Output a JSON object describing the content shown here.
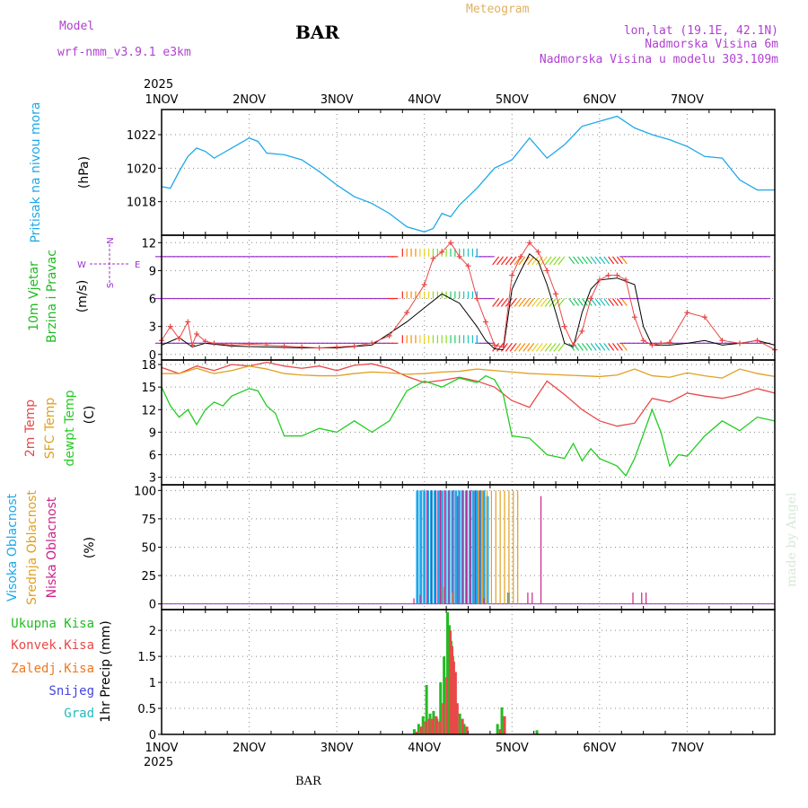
{
  "header": {
    "model_label": "Model",
    "model_name": "wrf-nmm_v3.9.1 e3km",
    "station": "BAR",
    "title": "Meteogram",
    "coords": "lon,lat (19.1E, 42.1N)",
    "elevation": "Nadmorska Visina 6m",
    "model_elevation": "Nadmorska Visina u modelu 303.109m",
    "year_top": "2025",
    "year_bottom": "2025",
    "footer_station": "BAR",
    "watermark": "made by Angel"
  },
  "colors": {
    "pressure": "#1ea8e8",
    "wind_label": "#22bb22",
    "wind_dir": "#9933cc",
    "t2m": "#e84848",
    "sfc": "#e0a020",
    "dew": "#22cc22",
    "cloud_high": "#1ea8e8",
    "cloud_mid": "#e0a020",
    "cloud_low": "#cc2288",
    "prec_total": "#22bb22",
    "prec_conv": "#e84848",
    "prec_frz": "#f07820",
    "prec_snow": "#4444dd",
    "prec_hail": "#22bbbb"
  },
  "chart_data": [
    {
      "type": "line",
      "id": "pressure",
      "ylabel": [
        "Pritisak na nivou mora",
        "(hPa)"
      ],
      "x_categories": [
        "1NOV",
        "2NOV",
        "3NOV",
        "4NOV",
        "5NOV",
        "6NOV",
        "7NOV"
      ],
      "ylim": [
        1016,
        1023.5
      ],
      "yticks": [
        1018,
        1020,
        1022
      ],
      "series": [
        {
          "name": "Pritisak na nivou mora",
          "x": [
            0,
            0.1,
            0.2,
            0.3,
            0.4,
            0.5,
            0.6,
            0.8,
            1.0,
            1.1,
            1.2,
            1.4,
            1.6,
            1.8,
            2.0,
            2.2,
            2.4,
            2.6,
            2.8,
            3.0,
            3.1,
            3.2,
            3.3,
            3.4,
            3.6,
            3.8,
            4.0,
            4.2,
            4.4,
            4.6,
            4.8,
            5.0,
            5.2,
            5.4,
            5.6,
            5.8,
            6.0,
            6.2,
            6.4,
            6.6,
            6.8,
            7.0
          ],
          "y": [
            1018.9,
            1018.8,
            1019.8,
            1020.7,
            1021.2,
            1021.0,
            1020.6,
            1021.2,
            1021.8,
            1021.6,
            1020.9,
            1020.8,
            1020.5,
            1019.8,
            1019.0,
            1018.3,
            1017.9,
            1017.3,
            1016.5,
            1016.2,
            1016.4,
            1017.3,
            1017.1,
            1017.8,
            1018.8,
            1020.0,
            1020.5,
            1021.8,
            1020.6,
            1021.4,
            1022.5,
            1022.8,
            1023.1,
            1022.4,
            1022.0,
            1021.7,
            1021.3,
            1020.7,
            1020.6,
            1019.3,
            1018.7,
            1018.7
          ]
        }
      ]
    },
    {
      "type": "line",
      "id": "wind",
      "ylabel": [
        "10m Vjetar",
        "Brzina i Pravac",
        "(m/s)"
      ],
      "direction_legend": [
        "N",
        "W",
        "E",
        "S"
      ],
      "ylim": [
        -0.6,
        12.8
      ],
      "yticks": [
        0,
        3,
        6,
        9,
        12
      ],
      "series": [
        {
          "name": "gust",
          "x": [
            0,
            0.1,
            0.2,
            0.3,
            0.35,
            0.4,
            0.5,
            0.6,
            0.8,
            1.0,
            1.2,
            1.4,
            1.6,
            1.8,
            2.0,
            2.2,
            2.4,
            2.6,
            2.8,
            3.0,
            3.1,
            3.2,
            3.3,
            3.4,
            3.5,
            3.6,
            3.7,
            3.8,
            3.9,
            4.0,
            4.1,
            4.2,
            4.3,
            4.4,
            4.5,
            4.6,
            4.7,
            4.8,
            4.9,
            5.0,
            5.1,
            5.2,
            5.3,
            5.4,
            5.5,
            5.6,
            5.7,
            5.8,
            6.0,
            6.2,
            6.4,
            6.6,
            6.8,
            7.0
          ],
          "y": [
            1.5,
            3.0,
            1.7,
            3.5,
            1.0,
            2.2,
            1.4,
            1.2,
            1.0,
            1.1,
            1.0,
            0.9,
            0.8,
            0.7,
            0.8,
            0.9,
            1.2,
            2.0,
            4.5,
            7.5,
            10.3,
            11.0,
            12.0,
            10.5,
            9.5,
            6.0,
            3.5,
            1.0,
            0.8,
            8.5,
            10.5,
            12.0,
            11.0,
            9.0,
            6.5,
            3.0,
            1.0,
            2.5,
            6.0,
            8.0,
            8.5,
            8.5,
            8.0,
            4.0,
            1.5,
            1.0,
            1.2,
            1.3,
            4.5,
            4.0,
            1.5,
            1.2,
            1.5,
            0.5
          ]
        },
        {
          "name": "speed",
          "x": [
            0,
            0.2,
            0.35,
            0.5,
            0.8,
            1.2,
            1.6,
            2.0,
            2.4,
            2.8,
            3.0,
            3.2,
            3.4,
            3.6,
            3.7,
            3.8,
            3.9,
            4.0,
            4.1,
            4.2,
            4.3,
            4.4,
            4.5,
            4.6,
            4.7,
            4.8,
            4.9,
            5.0,
            5.2,
            5.4,
            5.5,
            5.6,
            5.8,
            6.0,
            6.2,
            6.4,
            6.6,
            6.8,
            7.0
          ],
          "y": [
            1.0,
            1.8,
            0.8,
            1.2,
            0.9,
            0.8,
            0.7,
            0.7,
            1.0,
            3.5,
            5.0,
            6.5,
            5.5,
            3.0,
            1.5,
            0.6,
            0.5,
            7.0,
            9.0,
            10.8,
            10.0,
            7.5,
            4.5,
            1.2,
            0.8,
            4.5,
            7.0,
            8.0,
            8.2,
            7.5,
            3.0,
            1.0,
            1.0,
            1.2,
            1.5,
            1.0,
            1.2,
            1.5,
            1.0
          ]
        }
      ],
      "direction_rows": [
        1.2,
        6.0,
        10.5
      ]
    },
    {
      "type": "line",
      "id": "temperature",
      "ylabel": [
        "2m Temp",
        "SFC Temp",
        "dewpt Temp",
        "(C)"
      ],
      "ylim": [
        2,
        18.6
      ],
      "yticks": [
        3,
        6,
        9,
        12,
        15,
        18
      ],
      "series": [
        {
          "name": "2m Temp",
          "x": [
            0,
            0.2,
            0.4,
            0.6,
            0.8,
            1.0,
            1.2,
            1.4,
            1.6,
            1.8,
            2.0,
            2.2,
            2.4,
            2.6,
            2.8,
            3.0,
            3.2,
            3.4,
            3.6,
            3.8,
            4.0,
            4.2,
            4.4,
            4.6,
            4.8,
            5.0,
            5.2,
            5.4,
            5.6,
            5.8,
            6.0,
            6.2,
            6.4,
            6.6,
            6.8,
            7.0
          ],
          "y": [
            17.6,
            16.8,
            17.8,
            17.2,
            18.0,
            17.8,
            18.3,
            17.8,
            17.5,
            17.8,
            17.2,
            17.9,
            18.1,
            17.5,
            16.4,
            15.6,
            15.9,
            16.3,
            15.8,
            15.0,
            13.2,
            12.3,
            15.8,
            14.0,
            12.0,
            10.5,
            9.8,
            10.2,
            13.5,
            13.0,
            14.2,
            13.8,
            13.5,
            14.0,
            14.8,
            14.2
          ]
        },
        {
          "name": "SFC Temp",
          "x": [
            0,
            0.2,
            0.4,
            0.6,
            0.8,
            1.0,
            1.2,
            1.4,
            1.6,
            1.8,
            2.0,
            2.2,
            2.4,
            2.6,
            2.8,
            3.0,
            3.2,
            3.4,
            3.6,
            3.8,
            4.0,
            4.2,
            4.4,
            4.6,
            4.8,
            5.0,
            5.2,
            5.4,
            5.6,
            5.8,
            6.0,
            6.2,
            6.4,
            6.6,
            6.8,
            7.0
          ],
          "y": [
            16.8,
            16.8,
            17.5,
            16.8,
            17.2,
            17.8,
            17.4,
            16.8,
            16.6,
            16.5,
            16.5,
            16.8,
            17.0,
            16.9,
            16.7,
            16.8,
            17.0,
            17.1,
            17.4,
            17.2,
            17.0,
            16.8,
            16.7,
            16.6,
            16.5,
            16.4,
            16.6,
            17.4,
            16.5,
            16.3,
            16.9,
            16.5,
            16.2,
            17.4,
            16.8,
            16.4
          ]
        },
        {
          "name": "dewpt Temp",
          "x": [
            0,
            0.1,
            0.2,
            0.3,
            0.4,
            0.5,
            0.6,
            0.7,
            0.8,
            1.0,
            1.1,
            1.2,
            1.3,
            1.4,
            1.6,
            1.8,
            2.0,
            2.2,
            2.4,
            2.6,
            2.8,
            3.0,
            3.2,
            3.4,
            3.6,
            3.7,
            3.8,
            3.9,
            4.0,
            4.2,
            4.4,
            4.6,
            4.7,
            4.8,
            4.9,
            5.0,
            5.2,
            5.3,
            5.4,
            5.6,
            5.7,
            5.8,
            5.9,
            6.0,
            6.2,
            6.4,
            6.6,
            6.8,
            7.0
          ],
          "y": [
            15.0,
            12.5,
            11.0,
            12.0,
            10.0,
            12.0,
            13.0,
            12.5,
            13.8,
            14.8,
            14.5,
            12.5,
            11.5,
            8.5,
            8.5,
            9.5,
            9.0,
            10.5,
            9.0,
            10.5,
            14.5,
            15.8,
            15.0,
            16.2,
            15.6,
            16.5,
            16.0,
            14.0,
            8.5,
            8.2,
            6.0,
            5.5,
            7.5,
            5.2,
            6.8,
            5.5,
            4.5,
            3.2,
            5.5,
            12.0,
            9.0,
            4.5,
            6.0,
            5.8,
            8.5,
            10.5,
            9.2,
            11.0,
            10.5
          ]
        }
      ]
    },
    {
      "type": "bar",
      "id": "cloud",
      "ylabel": [
        "Visoka Oblacnost",
        "Srednja Oblacnost",
        "Niska Oblacnost",
        "(%)"
      ],
      "ylim": [
        -5,
        105
      ],
      "yticks": [
        0,
        25,
        50,
        75,
        100
      ],
      "series": [
        {
          "name": "Visoka Oblacnost",
          "x": [
            2.92,
            2.96,
            3.0,
            3.04,
            3.08,
            3.12,
            3.16,
            3.2,
            3.24,
            3.28,
            3.32,
            3.36,
            3.4,
            3.44,
            3.48,
            3.52,
            3.56,
            3.6,
            3.64,
            3.68,
            3.72,
            3.96
          ],
          "y": [
            100,
            100,
            100,
            100,
            100,
            100,
            100,
            100,
            100,
            100,
            100,
            100,
            100,
            100,
            100,
            100,
            100,
            100,
            100,
            100,
            95,
            10
          ]
        },
        {
          "name": "Srednja Oblacnost",
          "x": [
            3.2,
            3.3,
            3.6,
            3.65,
            3.7,
            3.75,
            3.8,
            3.85,
            3.9,
            3.95,
            4.0,
            4.05
          ],
          "y": [
            15,
            10,
            100,
            100,
            100,
            100,
            100,
            100,
            100,
            100,
            100,
            100
          ]
        },
        {
          "name": "Niska Oblacnost",
          "x": [
            2.85,
            2.92,
            3.0,
            3.05,
            3.1,
            3.15,
            3.2,
            3.25,
            3.3,
            3.35,
            3.4,
            3.45,
            3.5,
            3.55,
            3.6,
            3.65,
            4.15,
            4.2,
            4.3,
            5.35,
            5.45,
            5.5
          ],
          "y": [
            5,
            8,
            100,
            100,
            100,
            100,
            100,
            100,
            100,
            95,
            100,
            100,
            100,
            100,
            100,
            5,
            10,
            10,
            95,
            10,
            10,
            10
          ]
        }
      ]
    },
    {
      "type": "bar",
      "id": "precip",
      "ylabel": [
        "Ukupna Kisa",
        "Konvek.Kisa",
        "Zaledj.Kisa",
        "Snijeg",
        "Grad",
        "1hr Precip (mm)"
      ],
      "ylim": [
        0,
        2.4
      ],
      "yticks": [
        0,
        0.5,
        1,
        1.5,
        2
      ],
      "ytick_labels": [
        "0",
        "0.5",
        "1",
        "1.5",
        "2"
      ],
      "x_categories": [
        "1NOV",
        "2NOV",
        "3NOV",
        "4NOV",
        "5NOV",
        "6NOV",
        "7NOV"
      ],
      "series": [
        {
          "name": "Ukupna Kisa",
          "x": [
            2.9,
            2.95,
            3.0,
            3.04,
            3.08,
            3.12,
            3.16,
            3.2,
            3.24,
            3.28,
            3.3,
            3.32,
            3.34,
            3.36,
            3.42,
            3.47,
            3.85,
            3.9,
            4.3
          ],
          "y": [
            0.1,
            0.2,
            0.35,
            0.95,
            0.4,
            0.45,
            0.3,
            1.0,
            1.5,
            2.35,
            2.1,
            1.8,
            1.5,
            0.9,
            0.4,
            0.2,
            0.2,
            0.52,
            0.08
          ]
        },
        {
          "name": "Konvek.Kisa",
          "x": [
            2.9,
            2.95,
            3.0,
            3.04,
            3.08,
            3.12,
            3.16,
            3.2,
            3.24,
            3.28,
            3.3,
            3.32,
            3.34,
            3.36,
            3.42,
            3.47,
            3.85,
            3.9
          ],
          "y": [
            0.05,
            0.15,
            0.25,
            0.3,
            0.3,
            0.35,
            0.25,
            0.6,
            1.1,
            2.0,
            1.7,
            1.4,
            1.2,
            0.6,
            0.3,
            0.15,
            0.1,
            0.35
          ]
        }
      ]
    }
  ]
}
